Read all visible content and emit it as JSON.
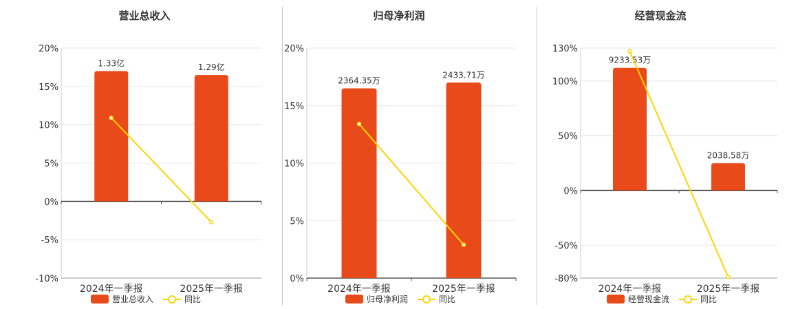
{
  "colors": {
    "bar": "#e84a1a",
    "line": "#ffd400",
    "grid": "#e6e6e6",
    "axis": "#555555",
    "text": "#333333"
  },
  "chart_data": [
    {
      "type": "bar",
      "title": "营业总收入",
      "categories": [
        "2024年一季报",
        "2025年一季报"
      ],
      "bar_values_pct": [
        17,
        16.5
      ],
      "bar_labels": [
        "1.33亿",
        "1.29亿"
      ],
      "line_values_pct": [
        10.9,
        -2.7
      ],
      "ylim": [
        -10,
        20
      ],
      "yticks": [
        -10,
        -5,
        0,
        5,
        10,
        15,
        20
      ],
      "ytick_labels": [
        "-10%",
        "-5%",
        "0%",
        "5%",
        "10%",
        "15%",
        "20%"
      ],
      "legend": {
        "bar": "营业总收入",
        "line": "同比"
      },
      "grid": true,
      "legend_position": "bottom"
    },
    {
      "type": "bar",
      "title": "归母净利润",
      "categories": [
        "2024年一季报",
        "2025年一季报"
      ],
      "bar_values_pct": [
        16.5,
        17
      ],
      "bar_labels": [
        "2364.35万",
        "2433.71万"
      ],
      "line_values_pct": [
        13.4,
        2.9
      ],
      "ylim": [
        0,
        20
      ],
      "yticks": [
        0,
        5,
        10,
        15,
        20
      ],
      "ytick_labels": [
        "0%",
        "5%",
        "10%",
        "15%",
        "20%"
      ],
      "legend": {
        "bar": "归母净利润",
        "line": "同比"
      },
      "grid": true,
      "legend_position": "bottom"
    },
    {
      "type": "bar",
      "title": "经营现金流",
      "categories": [
        "2024年一季报",
        "2025年一季报"
      ],
      "bar_values_pct": [
        112,
        25
      ],
      "bar_labels": [
        "9233.53万",
        "2038.58万"
      ],
      "line_values_pct": [
        127,
        -79
      ],
      "ylim": [
        -80,
        130
      ],
      "yticks": [
        -80,
        -50,
        0,
        50,
        100,
        130
      ],
      "ytick_labels": [
        "-80%",
        "-50%",
        "0%",
        "50%",
        "100%",
        "130%"
      ],
      "legend": {
        "bar": "经营现金流",
        "line": "同比"
      },
      "grid": true,
      "legend_position": "bottom"
    }
  ]
}
